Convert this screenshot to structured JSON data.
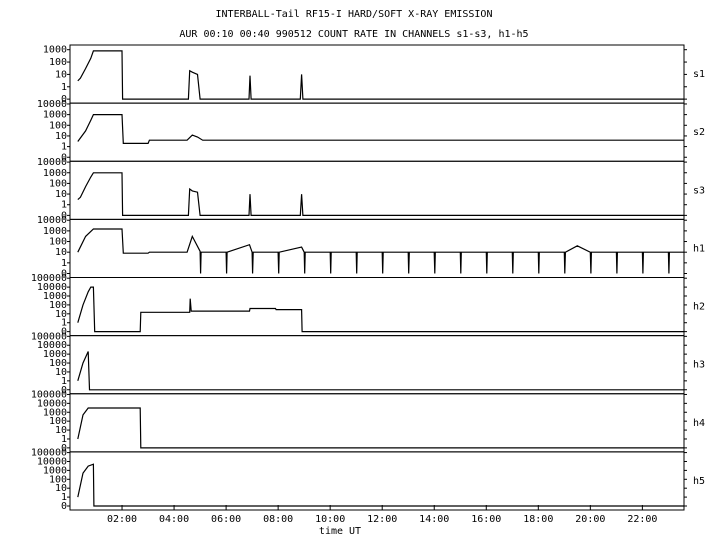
{
  "chart_data": [
    {
      "type": "line",
      "title": "INTERBALL-Tail RF15-I HARD/SOFT X-RAY EMISSION",
      "subtitle": "AUR 00:10 00:40 990512  COUNT RATE IN CHANNELS s1-s3, h1-h5",
      "ylabel": "s1",
      "yscale": "log",
      "xlim": [
        0,
        23.6
      ],
      "ylim": [
        0,
        2400
      ],
      "yticks": [
        0,
        1,
        10,
        100,
        1000
      ],
      "color": "#000000",
      "x": [
        0.3,
        0.4,
        0.6,
        0.8,
        0.9,
        2.0,
        2.02,
        4.55,
        4.6,
        4.7,
        4.9,
        5.0,
        6.88,
        6.92,
        6.96,
        8.85,
        8.9,
        8.95,
        23.6
      ],
      "values": [
        3,
        5,
        30,
        200,
        800,
        800,
        0,
        0,
        20,
        15,
        10,
        0,
        0,
        8,
        0,
        0,
        10,
        0,
        0
      ]
    },
    {
      "type": "line",
      "ylabel": "s2",
      "yscale": "log",
      "xlim": [
        0,
        23.6
      ],
      "ylim": [
        0,
        12000
      ],
      "yticks": [
        0,
        1,
        10,
        100,
        1000,
        10000
      ],
      "color": "#000000",
      "x": [
        0.3,
        0.6,
        0.8,
        0.9,
        2.0,
        2.05,
        3.0,
        3.05,
        4.5,
        4.7,
        4.9,
        5.1,
        6.0,
        7.0,
        8.0,
        9.0,
        10.0,
        12.0,
        14.0,
        16.0,
        18.0,
        19.5,
        21.0,
        23.6
      ],
      "values": [
        3,
        30,
        300,
        1000,
        1000,
        2,
        2,
        4,
        4,
        12,
        8,
        4,
        4,
        4,
        4,
        4,
        4,
        4,
        4,
        4,
        4,
        4,
        4,
        4
      ]
    },
    {
      "type": "line",
      "ylabel": "s3",
      "yscale": "log",
      "xlim": [
        0,
        23.6
      ],
      "ylim": [
        0,
        12000
      ],
      "yticks": [
        0,
        1,
        10,
        100,
        1000,
        10000
      ],
      "color": "#000000",
      "x": [
        0.3,
        0.4,
        0.6,
        0.8,
        0.9,
        2.0,
        2.02,
        4.55,
        4.6,
        4.7,
        4.9,
        5.0,
        6.88,
        6.92,
        6.96,
        8.85,
        8.9,
        8.95,
        23.6
      ],
      "values": [
        3,
        5,
        50,
        400,
        1000,
        1000,
        0,
        0,
        30,
        20,
        15,
        0,
        0,
        10,
        0,
        0,
        10,
        0,
        0
      ]
    },
    {
      "type": "line",
      "ylabel": "h1",
      "yscale": "log",
      "xlim": [
        0,
        23.6
      ],
      "ylim": [
        0,
        12000
      ],
      "yticks": [
        0,
        1,
        10,
        100,
        1000,
        10000
      ],
      "color": "#000000",
      "x": [
        0.3,
        0.6,
        0.9,
        2.0,
        2.05,
        3.0,
        3.05,
        4.5,
        4.7,
        5.0,
        5.02,
        5.04,
        6.0,
        6.02,
        6.04,
        6.9,
        7.0,
        7.02,
        7.04,
        8.0,
        8.02,
        8.04,
        8.9,
        9.0,
        9.02,
        9.04,
        10.0,
        10.02,
        10.04,
        11.0,
        11.02,
        11.04,
        12.0,
        12.02,
        12.04,
        13.0,
        13.02,
        13.04,
        14.0,
        14.02,
        14.04,
        15.0,
        15.02,
        15.04,
        16.0,
        16.02,
        16.04,
        17.0,
        17.02,
        17.04,
        18.0,
        18.02,
        18.04,
        19.0,
        19.02,
        19.04,
        19.5,
        20.0,
        20.02,
        20.04,
        21.0,
        21.02,
        21.04,
        22.0,
        22.02,
        22.04,
        23.0,
        23.02,
        23.04,
        23.6
      ],
      "values": [
        10,
        300,
        1500,
        1500,
        8,
        8,
        10,
        10,
        300,
        12,
        0,
        10,
        10,
        0,
        10,
        50,
        10,
        0,
        10,
        10,
        0,
        10,
        30,
        10,
        0,
        10,
        10,
        0,
        10,
        10,
        0,
        10,
        10,
        0,
        10,
        10,
        0,
        10,
        10,
        0,
        10,
        10,
        0,
        10,
        10,
        0,
        10,
        10,
        0,
        10,
        10,
        0,
        10,
        10,
        0,
        10,
        40,
        10,
        0,
        10,
        10,
        0,
        10,
        10,
        0,
        10,
        10,
        0,
        10,
        10
      ]
    },
    {
      "type": "line",
      "ylabel": "h2",
      "yscale": "log",
      "xlim": [
        0,
        23.6
      ],
      "ylim": [
        0,
        120000
      ],
      "yticks": [
        0,
        1,
        10,
        100,
        1000,
        10000,
        100000
      ],
      "color": "#000000",
      "x": [
        0.3,
        0.5,
        0.7,
        0.8,
        0.9,
        0.95,
        2.7,
        2.72,
        4.6,
        4.62,
        4.66,
        4.7,
        6.9,
        6.92,
        7.9,
        7.92,
        8.9,
        8.92,
        23.6
      ],
      "values": [
        1,
        100,
        3000,
        10000,
        10000,
        0,
        0,
        15,
        15,
        500,
        20,
        20,
        20,
        40,
        40,
        30,
        30,
        0,
        0
      ]
    },
    {
      "type": "line",
      "ylabel": "h3",
      "yscale": "log",
      "xlim": [
        0,
        23.6
      ],
      "ylim": [
        0,
        120000
      ],
      "yticks": [
        0,
        1,
        10,
        100,
        1000,
        10000,
        100000
      ],
      "color": "#000000",
      "x": [
        0.3,
        0.5,
        0.7,
        0.75,
        23.6
      ],
      "values": [
        1,
        100,
        2000,
        0,
        0
      ]
    },
    {
      "type": "line",
      "ylabel": "h4",
      "yscale": "log",
      "xlim": [
        0,
        23.6
      ],
      "ylim": [
        0,
        120000
      ],
      "yticks": [
        0,
        1,
        10,
        100,
        1000,
        10000,
        100000
      ],
      "color": "#000000",
      "x": [
        0.3,
        0.5,
        0.7,
        2.7,
        2.72,
        23.6
      ],
      "values": [
        1,
        500,
        3000,
        3000,
        0,
        0
      ]
    },
    {
      "type": "line",
      "ylabel": "h5",
      "yscale": "log",
      "xlim": [
        0,
        23.6
      ],
      "ylim": [
        0,
        120000
      ],
      "yticks": [
        0,
        1,
        10,
        100,
        1000,
        10000,
        100000
      ],
      "color": "#000000",
      "xlabel": "time UT",
      "xticks": [
        {
          "value": 2,
          "label": "02:00"
        },
        {
          "value": 4,
          "label": "04:00"
        },
        {
          "value": 6,
          "label": "06:00"
        },
        {
          "value": 8,
          "label": "08:00"
        },
        {
          "value": 10,
          "label": "10:00"
        },
        {
          "value": 12,
          "label": "12:00"
        },
        {
          "value": 14,
          "label": "14:00"
        },
        {
          "value": 16,
          "label": "16:00"
        },
        {
          "value": 18,
          "label": "18:00"
        },
        {
          "value": 20,
          "label": "20:00"
        },
        {
          "value": 22,
          "label": "22:00"
        }
      ],
      "x": [
        0.3,
        0.5,
        0.7,
        0.9,
        0.92,
        23.6
      ],
      "values": [
        1,
        500,
        3000,
        5000,
        0,
        0
      ]
    }
  ]
}
